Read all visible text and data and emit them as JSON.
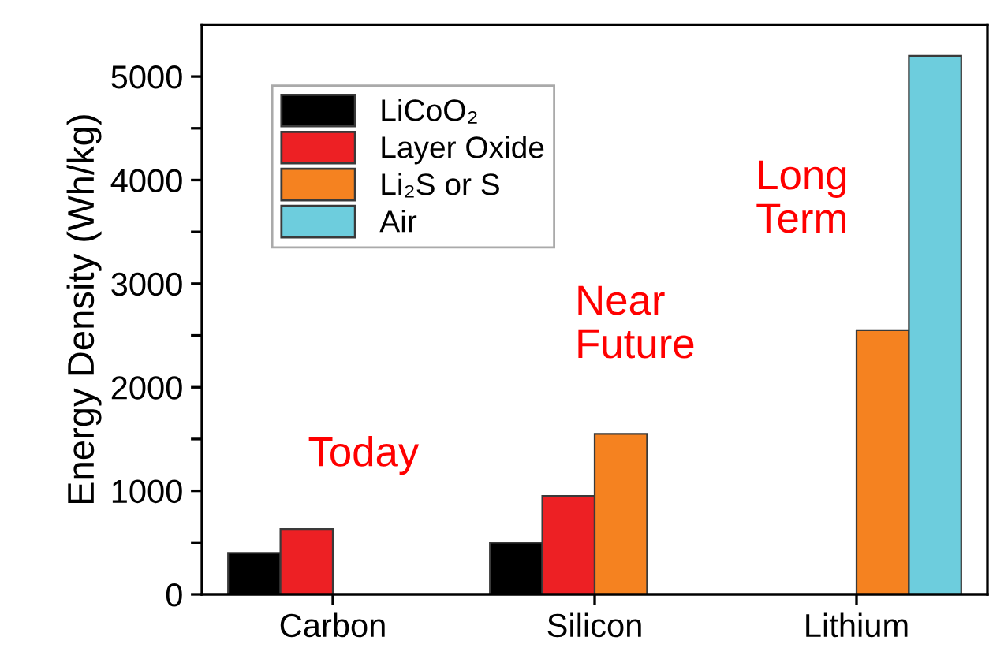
{
  "chart_data": {
    "type": "bar",
    "ylabel": "Energy Density (Wh/kg)",
    "categories": [
      "Carbon",
      "Silicon",
      "Lithium"
    ],
    "series": [
      {
        "name": "LiCoO₂",
        "color": "#000000",
        "values": [
          400,
          500,
          null
        ]
      },
      {
        "name": "Layer Oxide",
        "color": "#ed2024",
        "values": [
          630,
          950,
          null
        ]
      },
      {
        "name": "Li₂S or S",
        "color": "#f58220",
        "values": [
          null,
          1550,
          2550
        ]
      },
      {
        "name": "Air",
        "color": "#6dcddd",
        "values": [
          null,
          null,
          5200
        ]
      }
    ],
    "ylim": [
      0,
      5500
    ],
    "yticks": [
      0,
      {
        "value": 500,
        "label": null
      },
      1000,
      {
        "value": 1500,
        "label": null
      },
      2000,
      {
        "value": 2500,
        "label": null
      },
      3000,
      {
        "value": 3500,
        "label": null
      },
      4000,
      {
        "value": 4500,
        "label": null
      },
      5000
    ],
    "annotations": [
      "Today",
      "Near\nFuture",
      "Long\nTerm"
    ],
    "legend": "top left",
    "grid": false
  }
}
